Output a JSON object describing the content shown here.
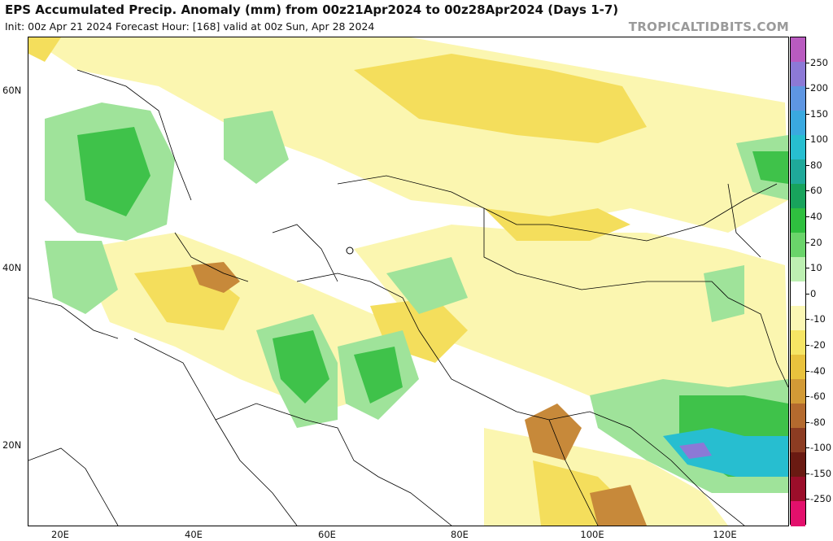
{
  "header": {
    "title": "EPS Accumulated Precip. Anomaly (mm) from 00z21Apr2024 to 00z28Apr2024 (Days 1-7)",
    "subtitle": "Init: 00z Apr 21 2024   Forecast Hour: [168]   valid at 00z Sun, Apr 28 2024",
    "brand": "TROPICALTIDBITS.COM"
  },
  "map": {
    "lat_labels": [
      "60N",
      "40N",
      "20N"
    ],
    "lon_labels": [
      "20E",
      "40E",
      "60E",
      "80E",
      "100E",
      "120E"
    ]
  },
  "colorbar": {
    "labels": [
      "250",
      "200",
      "150",
      "100",
      "80",
      "60",
      "40",
      "20",
      "10",
      "0",
      "-10",
      "-20",
      "-40",
      "-60",
      "-80",
      "-100",
      "-150",
      "-250"
    ],
    "colors": [
      "#b95bc0",
      "#8c79d6",
      "#5e96e2",
      "#3aa9e0",
      "#27bed0",
      "#1fa99a",
      "#18a35c",
      "#2fbf3f",
      "#6ad46a",
      "#bdf0b2",
      "#ffffff",
      "#fbf7b4",
      "#f6e564",
      "#e9c23d",
      "#d29a36",
      "#b46a2e",
      "#8c3c22",
      "#6a1a12",
      "#9b0e2a",
      "#e3106c"
    ]
  }
}
